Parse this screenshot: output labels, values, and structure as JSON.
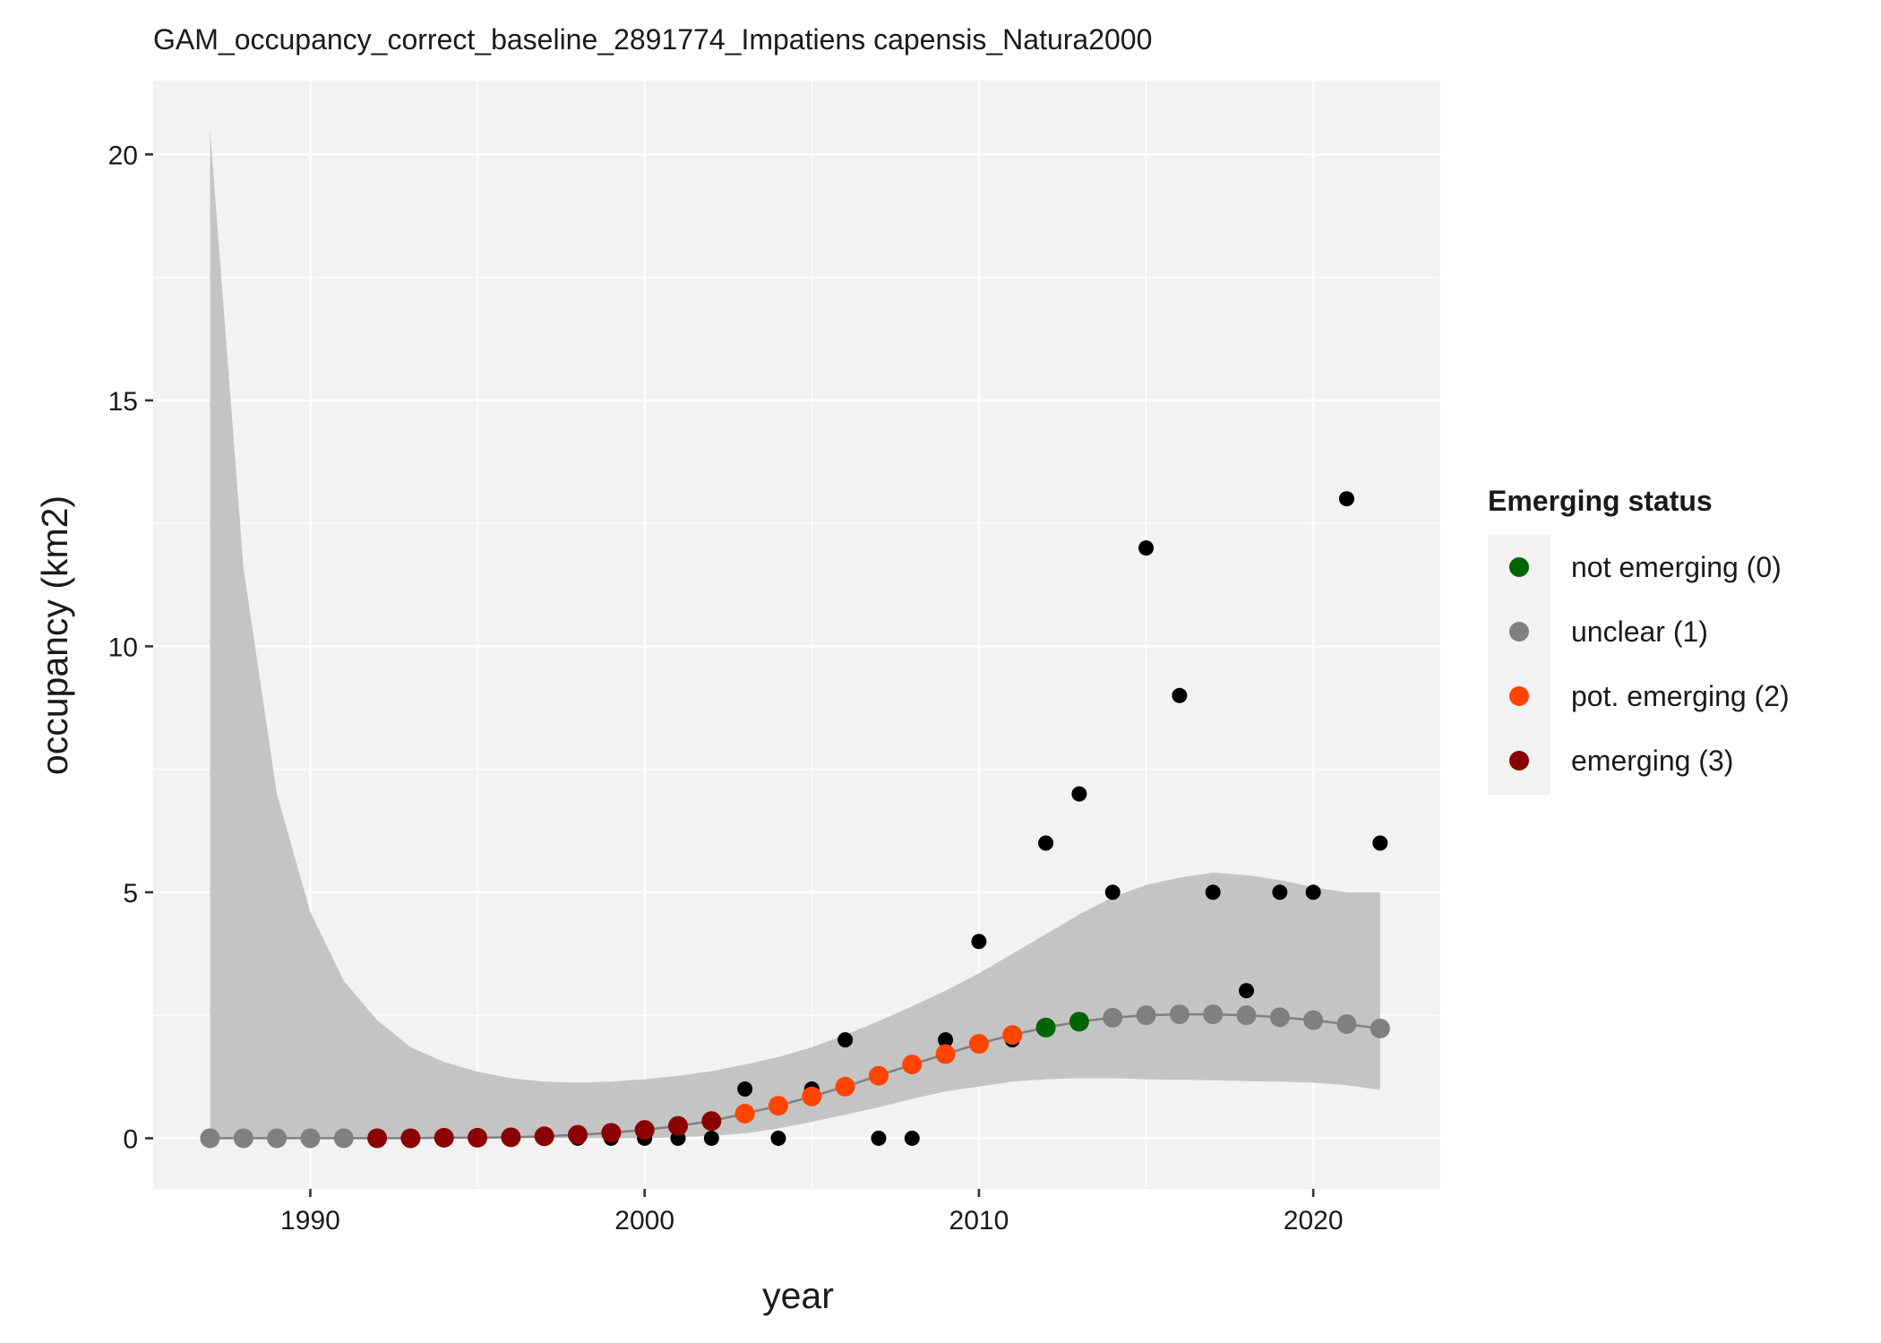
{
  "chart_data": {
    "type": "scatter",
    "title": "GAM_occupancy_correct_baseline_2891774_Impatiens capensis_Natura2000",
    "xlabel": "year",
    "ylabel": "occupancy (km2)",
    "xlim": [
      1985.3,
      2023.8
    ],
    "ylim": [
      -1.03,
      21.5
    ],
    "x_ticks": [
      1990,
      2000,
      2010,
      2020
    ],
    "x_tick_labels": [
      "1990",
      "2000",
      "2010",
      "2020"
    ],
    "y_ticks": [
      0,
      5,
      10,
      15,
      20
    ],
    "y_tick_labels": [
      "0",
      "5",
      "10",
      "15",
      "20"
    ],
    "grid": true,
    "legend": {
      "title": "Emerging status",
      "position": "right",
      "items": [
        {
          "label": "not emerging (0)",
          "color": "#006400"
        },
        {
          "label": "unclear (1)",
          "color": "#808080"
        },
        {
          "label": "pot. emerging (2)",
          "color": "#ff4500"
        },
        {
          "label": "emerging (3)",
          "color": "#8b0000"
        }
      ]
    },
    "colors": {
      "panel_bg": "#f2f2f2",
      "grid": "#ffffff",
      "ribbon": "#c4c4c4",
      "line": "#808080",
      "observed": "#000000",
      "status_0": "#006400",
      "status_1": "#808080",
      "status_2": "#ff4500",
      "status_3": "#8b0000"
    },
    "observed": {
      "x": [
        1987,
        1988,
        1989,
        1990,
        1991,
        1992,
        1993,
        1994,
        1995,
        1996,
        1997,
        1998,
        1999,
        2000,
        2001,
        2002,
        2003,
        2004,
        2005,
        2006,
        2007,
        2008,
        2009,
        2010,
        2011,
        2012,
        2013,
        2014,
        2015,
        2016,
        2017,
        2018,
        2019,
        2020,
        2021,
        2022
      ],
      "y": [
        0,
        0,
        0,
        0,
        0,
        0,
        0,
        0,
        0,
        0,
        0,
        0,
        0,
        0,
        0,
        0,
        1,
        0,
        1,
        2,
        0,
        0,
        2,
        4,
        2,
        6,
        7,
        5,
        12,
        9,
        5,
        3,
        5,
        5,
        13,
        6
      ]
    },
    "fitted": {
      "x": [
        1987,
        1988,
        1989,
        1990,
        1991,
        1992,
        1993,
        1994,
        1995,
        1996,
        1997,
        1998,
        1999,
        2000,
        2001,
        2002,
        2003,
        2004,
        2005,
        2006,
        2007,
        2008,
        2009,
        2010,
        2011,
        2012,
        2013,
        2014,
        2015,
        2016,
        2017,
        2018,
        2019,
        2020,
        2021,
        2022
      ],
      "y": [
        0,
        0,
        0,
        0,
        0,
        0,
        0,
        0.01,
        0.01,
        0.02,
        0.04,
        0.07,
        0.11,
        0.17,
        0.25,
        0.35,
        0.5,
        0.66,
        0.85,
        1.05,
        1.27,
        1.5,
        1.71,
        1.92,
        2.1,
        2.25,
        2.37,
        2.45,
        2.5,
        2.52,
        2.52,
        2.5,
        2.46,
        2.4,
        2.32,
        2.23
      ],
      "status": [
        1,
        1,
        1,
        1,
        1,
        3,
        3,
        3,
        3,
        3,
        3,
        3,
        3,
        3,
        3,
        3,
        2,
        2,
        2,
        2,
        2,
        2,
        2,
        2,
        2,
        0,
        0,
        1,
        1,
        1,
        1,
        1,
        1,
        1,
        1,
        1
      ]
    },
    "ribbon": {
      "x": [
        1987,
        1988,
        1989,
        1990,
        1991,
        1992,
        1993,
        1994,
        1995,
        1996,
        1997,
        1998,
        1999,
        2000,
        2001,
        2002,
        2003,
        2004,
        2005,
        2006,
        2007,
        2008,
        2009,
        2010,
        2011,
        2012,
        2013,
        2014,
        2015,
        2016,
        2017,
        2018,
        2019,
        2020,
        2021,
        2022
      ],
      "lower": [
        0,
        0,
        0,
        0,
        0,
        0,
        0,
        0,
        0,
        0,
        0,
        0,
        0,
        0,
        0.02,
        0.05,
        0.1,
        0.2,
        0.33,
        0.48,
        0.63,
        0.8,
        0.95,
        1.05,
        1.15,
        1.2,
        1.22,
        1.22,
        1.2,
        1.19,
        1.18,
        1.16,
        1.15,
        1.13,
        1.08,
        0.98
      ],
      "upper": [
        20.5,
        11.6,
        7.0,
        4.6,
        3.2,
        2.4,
        1.85,
        1.55,
        1.35,
        1.22,
        1.15,
        1.13,
        1.15,
        1.2,
        1.27,
        1.36,
        1.5,
        1.65,
        1.85,
        2.1,
        2.38,
        2.68,
        3.0,
        3.35,
        3.75,
        4.15,
        4.55,
        4.9,
        5.15,
        5.3,
        5.4,
        5.35,
        5.25,
        5.1,
        5.0,
        5.0
      ]
    }
  }
}
